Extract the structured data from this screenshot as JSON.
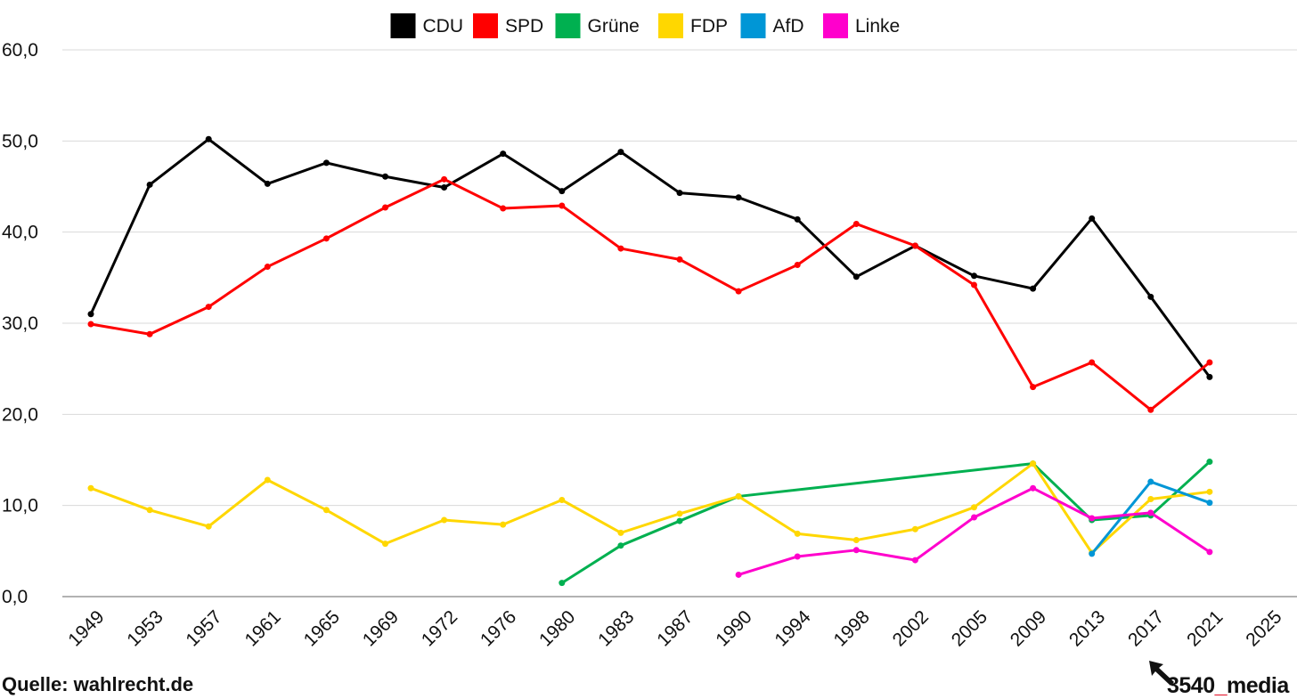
{
  "chart_data": {
    "type": "line",
    "title": "",
    "xlabel": "",
    "ylabel": "",
    "ylim": [
      0,
      60
    ],
    "yticks": [
      0,
      10,
      20,
      30,
      40,
      50,
      60
    ],
    "ytick_labels": [
      "0,0",
      "10,0",
      "20,0",
      "30,0",
      "40,0",
      "50,0",
      "60,0"
    ],
    "grid": true,
    "legend_position": "top",
    "categories": [
      "1949",
      "1953",
      "1957",
      "1961",
      "1965",
      "1969",
      "1972",
      "1976",
      "1980",
      "1983",
      "1987",
      "1990",
      "1994",
      "1998",
      "2002",
      "2005",
      "2009",
      "2013",
      "2017",
      "2021",
      "2025"
    ],
    "series": [
      {
        "name": "CDU",
        "color": "#000000",
        "values": [
          31.0,
          45.2,
          50.2,
          45.3,
          47.6,
          46.1,
          44.9,
          48.6,
          44.5,
          48.8,
          44.3,
          43.8,
          41.4,
          35.1,
          38.5,
          35.2,
          33.8,
          41.5,
          32.9,
          24.1,
          null
        ]
      },
      {
        "name": "SPD",
        "color": "#ff0000",
        "values": [
          29.9,
          28.8,
          31.8,
          36.2,
          39.3,
          42.7,
          45.8,
          42.6,
          42.9,
          38.2,
          37.0,
          33.5,
          36.4,
          40.9,
          38.5,
          34.2,
          23.0,
          25.7,
          20.5,
          25.7,
          null
        ]
      },
      {
        "name": "Grüne",
        "color": "#00b050",
        "values": [
          null,
          null,
          null,
          null,
          null,
          null,
          null,
          null,
          1.5,
          5.6,
          8.3,
          11.0,
          null,
          null,
          null,
          null,
          14.6,
          8.4,
          8.9,
          14.8,
          null
        ]
      },
      {
        "name": "FDP",
        "color": "#ffd700",
        "values": [
          11.9,
          9.5,
          7.7,
          12.8,
          9.5,
          5.8,
          8.4,
          7.9,
          10.6,
          7.0,
          9.1,
          11.0,
          6.9,
          6.2,
          7.4,
          9.8,
          14.6,
          4.8,
          10.7,
          11.5,
          null
        ]
      },
      {
        "name": "AfD",
        "color": "#0096d6",
        "values": [
          null,
          null,
          null,
          null,
          null,
          null,
          null,
          null,
          null,
          null,
          null,
          null,
          null,
          null,
          null,
          null,
          null,
          4.7,
          12.6,
          10.3,
          null
        ]
      },
      {
        "name": "Linke",
        "color": "#ff00cc",
        "values": [
          null,
          null,
          null,
          null,
          null,
          null,
          null,
          null,
          null,
          null,
          null,
          2.4,
          4.4,
          5.1,
          4.0,
          8.7,
          11.9,
          8.6,
          9.2,
          4.9,
          null
        ]
      }
    ]
  },
  "source_text": "Quelle: wahlrecht.de",
  "brand": {
    "prefix": "3540",
    "underscore": "_",
    "suffix": "media"
  }
}
